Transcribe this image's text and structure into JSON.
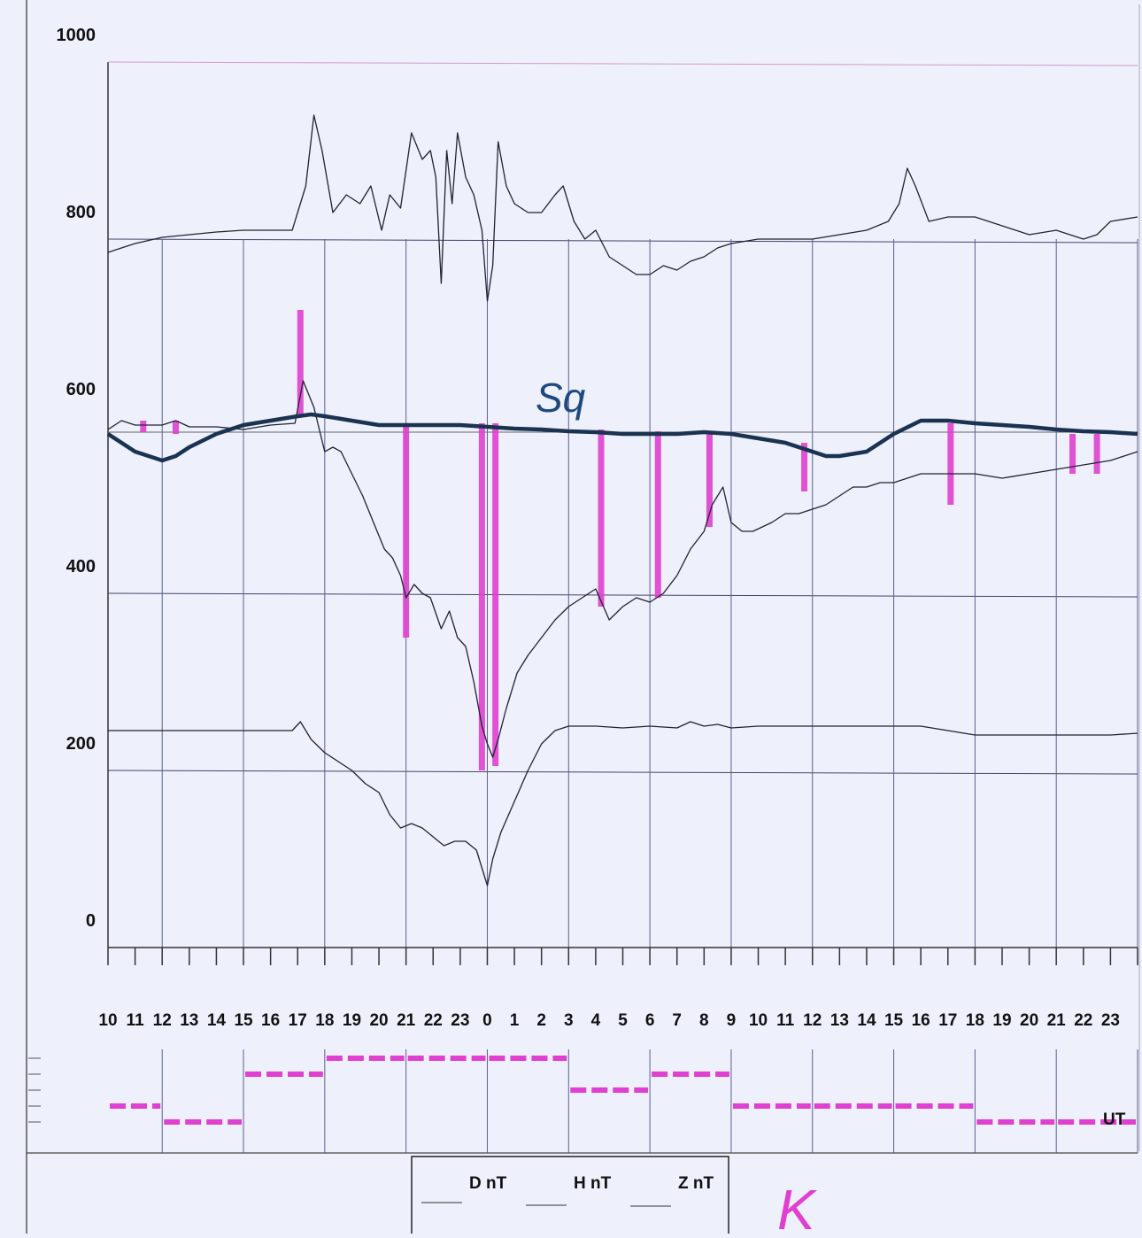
{
  "chart_data": {
    "type": "line",
    "y_ticks": [
      "1000",
      "800",
      "600",
      "400",
      "200",
      "0"
    ],
    "ylim": [
      0,
      1000
    ],
    "x_tick_labels": [
      "10",
      "11",
      "12",
      "13",
      "14",
      "15",
      "16",
      "17",
      "18",
      "19",
      "20",
      "21",
      "22",
      "23",
      "0",
      "1",
      "2",
      "3",
      "4",
      "5",
      "6",
      "7",
      "8",
      "9",
      "10",
      "11",
      "12",
      "13",
      "14",
      "15",
      "16",
      "17",
      "18",
      "19",
      "20",
      "21",
      "22",
      "23"
    ],
    "x_hours_start": 10,
    "x_hours_end": 48,
    "x_axis_unit": "UT",
    "grid": true,
    "legend": {
      "placement": "bottom-center",
      "entries": [
        "D nT",
        "H nT",
        "Z nT"
      ]
    },
    "curve_label": "Sq",
    "k_label": "K",
    "series": [
      {
        "name": "D nT",
        "color": "#222233",
        "points": [
          [
            10,
            785
          ],
          [
            11,
            795
          ],
          [
            12,
            802
          ],
          [
            13,
            805
          ],
          [
            14,
            808
          ],
          [
            15,
            810
          ],
          [
            16,
            810
          ],
          [
            16.8,
            810
          ],
          [
            17,
            830
          ],
          [
            17.3,
            860
          ],
          [
            17.6,
            940
          ],
          [
            17.9,
            900
          ],
          [
            18.3,
            830
          ],
          [
            18.8,
            850
          ],
          [
            19.3,
            840
          ],
          [
            19.7,
            860
          ],
          [
            20.1,
            810
          ],
          [
            20.4,
            850
          ],
          [
            20.8,
            835
          ],
          [
            21.2,
            920
          ],
          [
            21.6,
            890
          ],
          [
            21.9,
            900
          ],
          [
            22.1,
            870
          ],
          [
            22.3,
            750
          ],
          [
            22.5,
            900
          ],
          [
            22.7,
            840
          ],
          [
            22.9,
            920
          ],
          [
            23.2,
            870
          ],
          [
            23.5,
            850
          ],
          [
            23.8,
            810
          ],
          [
            24.0,
            730
          ],
          [
            24.2,
            770
          ],
          [
            24.4,
            910
          ],
          [
            24.7,
            860
          ],
          [
            25,
            840
          ],
          [
            25.5,
            830
          ],
          [
            26,
            830
          ],
          [
            26.5,
            850
          ],
          [
            26.8,
            860
          ],
          [
            27.2,
            820
          ],
          [
            27.6,
            800
          ],
          [
            28,
            810
          ],
          [
            28.5,
            780
          ],
          [
            29,
            770
          ],
          [
            29.5,
            760
          ],
          [
            30,
            760
          ],
          [
            30.5,
            770
          ],
          [
            31,
            765
          ],
          [
            31.5,
            775
          ],
          [
            32,
            780
          ],
          [
            32.5,
            790
          ],
          [
            33,
            795
          ],
          [
            34,
            800
          ],
          [
            35,
            800
          ],
          [
            36,
            800
          ],
          [
            37,
            805
          ],
          [
            38,
            810
          ],
          [
            38.8,
            820
          ],
          [
            39.2,
            840
          ],
          [
            39.5,
            880
          ],
          [
            39.8,
            860
          ],
          [
            40.3,
            820
          ],
          [
            41,
            825
          ],
          [
            42,
            825
          ],
          [
            43,
            815
          ],
          [
            44,
            805
          ],
          [
            45,
            810
          ],
          [
            46,
            800
          ],
          [
            46.5,
            805
          ],
          [
            47,
            820
          ],
          [
            48,
            825
          ]
        ]
      },
      {
        "name": "H nT",
        "color": "#222233",
        "points": [
          [
            10,
            585
          ],
          [
            10.5,
            595
          ],
          [
            11,
            590
          ],
          [
            11.5,
            590
          ],
          [
            12,
            590
          ],
          [
            12.5,
            595
          ],
          [
            13,
            588
          ],
          [
            14,
            588
          ],
          [
            15,
            585
          ],
          [
            16,
            590
          ],
          [
            16.9,
            592
          ],
          [
            17.2,
            640
          ],
          [
            17.6,
            610
          ],
          [
            18,
            560
          ],
          [
            18.3,
            565
          ],
          [
            18.6,
            560
          ],
          [
            19,
            535
          ],
          [
            19.4,
            510
          ],
          [
            19.8,
            480
          ],
          [
            20.2,
            450
          ],
          [
            20.5,
            440
          ],
          [
            20.8,
            420
          ],
          [
            21,
            395
          ],
          [
            21.3,
            410
          ],
          [
            21.6,
            400
          ],
          [
            21.9,
            395
          ],
          [
            22.3,
            360
          ],
          [
            22.6,
            380
          ],
          [
            22.9,
            350
          ],
          [
            23.2,
            340
          ],
          [
            23.5,
            300
          ],
          [
            23.8,
            250
          ],
          [
            24.0,
            230
          ],
          [
            24.2,
            215
          ],
          [
            24.4,
            235
          ],
          [
            24.7,
            270
          ],
          [
            25.1,
            310
          ],
          [
            25.5,
            330
          ],
          [
            26,
            350
          ],
          [
            26.5,
            370
          ],
          [
            27,
            385
          ],
          [
            27.5,
            395
          ],
          [
            28,
            405
          ],
          [
            28.5,
            370
          ],
          [
            29,
            385
          ],
          [
            29.5,
            395
          ],
          [
            30,
            390
          ],
          [
            30.5,
            400
          ],
          [
            31,
            420
          ],
          [
            31.5,
            450
          ],
          [
            32,
            470
          ],
          [
            32.3,
            500
          ],
          [
            32.7,
            520
          ],
          [
            33,
            480
          ],
          [
            33.4,
            470
          ],
          [
            33.8,
            470
          ],
          [
            34.5,
            480
          ],
          [
            35,
            490
          ],
          [
            35.5,
            490
          ],
          [
            36,
            495
          ],
          [
            36.5,
            500
          ],
          [
            37,
            510
          ],
          [
            37.5,
            520
          ],
          [
            38,
            520
          ],
          [
            38.5,
            525
          ],
          [
            39,
            525
          ],
          [
            39.5,
            530
          ],
          [
            40,
            535
          ],
          [
            41,
            535
          ],
          [
            42,
            535
          ],
          [
            43,
            530
          ],
          [
            44,
            535
          ],
          [
            45,
            540
          ],
          [
            46,
            545
          ],
          [
            47,
            550
          ],
          [
            48,
            560
          ]
        ]
      },
      {
        "name": "Z nT",
        "color": "#222233",
        "points": [
          [
            10,
            245
          ],
          [
            11,
            245
          ],
          [
            12,
            245
          ],
          [
            13,
            245
          ],
          [
            14,
            245
          ],
          [
            15,
            245
          ],
          [
            16,
            245
          ],
          [
            16.8,
            245
          ],
          [
            17.1,
            255
          ],
          [
            17.5,
            235
          ],
          [
            18,
            220
          ],
          [
            18.5,
            210
          ],
          [
            19,
            200
          ],
          [
            19.5,
            185
          ],
          [
            20,
            175
          ],
          [
            20.4,
            150
          ],
          [
            20.8,
            135
          ],
          [
            21.2,
            140
          ],
          [
            21.6,
            135
          ],
          [
            22,
            125
          ],
          [
            22.4,
            115
          ],
          [
            22.8,
            120
          ],
          [
            23.2,
            120
          ],
          [
            23.6,
            110
          ],
          [
            24.0,
            70
          ],
          [
            24.2,
            100
          ],
          [
            24.5,
            130
          ],
          [
            25,
            165
          ],
          [
            25.5,
            200
          ],
          [
            26,
            230
          ],
          [
            26.5,
            245
          ],
          [
            27,
            250
          ],
          [
            28,
            250
          ],
          [
            29,
            248
          ],
          [
            30,
            250
          ],
          [
            31,
            248
          ],
          [
            31.5,
            255
          ],
          [
            32,
            250
          ],
          [
            32.5,
            252
          ],
          [
            33,
            248
          ],
          [
            34,
            250
          ],
          [
            35,
            250
          ],
          [
            36,
            250
          ],
          [
            37,
            250
          ],
          [
            38,
            250
          ],
          [
            39,
            250
          ],
          [
            40,
            250
          ],
          [
            41,
            245
          ],
          [
            42,
            240
          ],
          [
            43,
            240
          ],
          [
            44,
            240
          ],
          [
            45,
            240
          ],
          [
            46,
            240
          ],
          [
            47,
            240
          ],
          [
            48,
            242
          ]
        ]
      },
      {
        "name": "Sq",
        "color": "#1a3350",
        "points": [
          [
            10,
            580
          ],
          [
            10.5,
            570
          ],
          [
            11,
            560
          ],
          [
            12,
            550
          ],
          [
            12.5,
            555
          ],
          [
            13,
            565
          ],
          [
            14,
            580
          ],
          [
            15,
            590
          ],
          [
            16,
            595
          ],
          [
            17,
            600
          ],
          [
            17.5,
            602
          ],
          [
            18,
            600
          ],
          [
            19,
            595
          ],
          [
            20,
            590
          ],
          [
            21,
            590
          ],
          [
            22,
            590
          ],
          [
            23,
            590
          ],
          [
            24,
            588
          ],
          [
            25,
            586
          ],
          [
            26,
            585
          ],
          [
            27,
            583
          ],
          [
            28,
            582
          ],
          [
            29,
            580
          ],
          [
            30,
            580
          ],
          [
            31,
            580
          ],
          [
            32,
            582
          ],
          [
            33,
            580
          ],
          [
            34,
            575
          ],
          [
            35,
            570
          ],
          [
            36,
            560
          ],
          [
            36.5,
            555
          ],
          [
            37,
            555
          ],
          [
            38,
            560
          ],
          [
            38.5,
            570
          ],
          [
            39,
            580
          ],
          [
            40,
            595
          ],
          [
            41,
            595
          ],
          [
            42,
            592
          ],
          [
            43,
            590
          ],
          [
            44,
            588
          ],
          [
            45,
            585
          ],
          [
            46,
            583
          ],
          [
            47,
            582
          ],
          [
            48,
            580
          ]
        ]
      }
    ],
    "disturbance_bars_h": [
      {
        "hour": 11.3,
        "from": 595,
        "to": 582
      },
      {
        "hour": 12.5,
        "from": 595,
        "to": 580
      },
      {
        "hour": 17.1,
        "from": 600,
        "to": 720
      },
      {
        "hour": 21.0,
        "from": 590,
        "to": 350
      },
      {
        "hour": 23.8,
        "from": 592,
        "to": 200
      },
      {
        "hour": 24.3,
        "from": 592,
        "to": 205
      },
      {
        "hour": 28.2,
        "from": 585,
        "to": 385
      },
      {
        "hour": 30.3,
        "from": 583,
        "to": 395
      },
      {
        "hour": 32.2,
        "from": 582,
        "to": 475
      },
      {
        "hour": 35.7,
        "from": 570,
        "to": 515
      },
      {
        "hour": 41.1,
        "from": 592,
        "to": 500
      },
      {
        "hour": 45.6,
        "from": 580,
        "to": 535
      },
      {
        "hour": 46.5,
        "from": 580,
        "to": 535
      }
    ],
    "k_index": [
      {
        "from": 10,
        "to": 12,
        "level": 3
      },
      {
        "from": 12,
        "to": 15,
        "level": 2
      },
      {
        "from": 15,
        "to": 18,
        "level": 5
      },
      {
        "from": 18,
        "to": 21,
        "level": 6
      },
      {
        "from": 21,
        "to": 24,
        "level": 6
      },
      {
        "from": 24,
        "to": 27,
        "level": 6
      },
      {
        "from": 27,
        "to": 30,
        "level": 4
      },
      {
        "from": 30,
        "to": 33,
        "level": 5
      },
      {
        "from": 33,
        "to": 36,
        "level": 3
      },
      {
        "from": 36,
        "to": 39,
        "level": 3
      },
      {
        "from": 39,
        "to": 42,
        "level": 3
      },
      {
        "from": 42,
        "to": 45,
        "level": 2
      },
      {
        "from": 45,
        "to": 48,
        "level": 2
      }
    ],
    "colors": {
      "ink": "#222233",
      "sq": "#1a3350",
      "k_bars": "#e040d0",
      "paper": "#eef0fb"
    }
  }
}
